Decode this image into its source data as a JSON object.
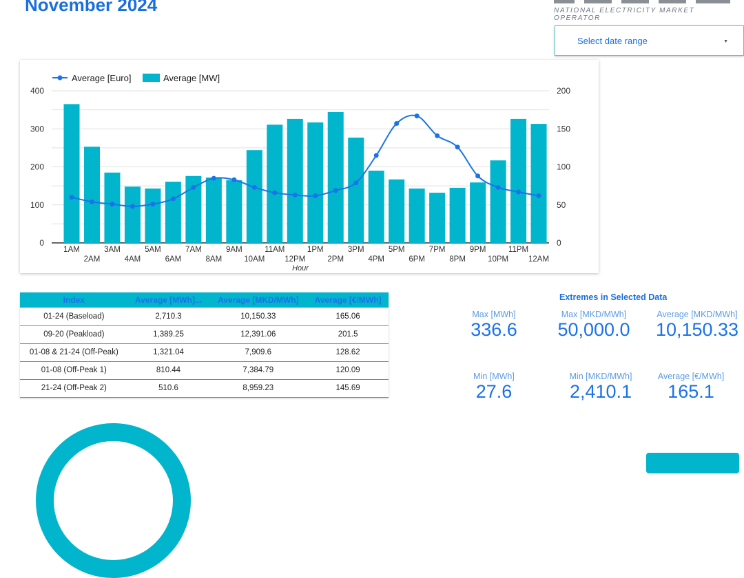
{
  "header": {
    "title": "November 2024",
    "logo_tagline": "NATIONAL ELECTRICITY MARKET OPERATOR"
  },
  "date_range": {
    "label": "Select date range",
    "icon": "caret-down-icon"
  },
  "colors": {
    "bar": "#00b5cc",
    "line": "#1a73e8",
    "title": "#1a6fe0"
  },
  "chart_data": {
    "type": "bar+line",
    "xlabel": "Hour",
    "categories": [
      "1AM",
      "2AM",
      "3AM",
      "4AM",
      "5AM",
      "6AM",
      "7AM",
      "8AM",
      "9AM",
      "10AM",
      "11AM",
      "12PM",
      "1PM",
      "2PM",
      "3PM",
      "4PM",
      "5PM",
      "6PM",
      "7PM",
      "8PM",
      "9PM",
      "10PM",
      "11PM",
      "12AM"
    ],
    "series": [
      {
        "name": "Average [MW]",
        "type": "bar",
        "axis": "left",
        "values": [
          365,
          253,
          185,
          148,
          143,
          161,
          176,
          172,
          165,
          244,
          311,
          326,
          317,
          344,
          277,
          190,
          167,
          143,
          132,
          145,
          159,
          217,
          326,
          313
        ]
      },
      {
        "name": "Average [Euro]",
        "type": "line",
        "axis": "right",
        "values": [
          60,
          54,
          51,
          48,
          51,
          58,
          73,
          85,
          83,
          73,
          66,
          63,
          62,
          69,
          79,
          115,
          157,
          167,
          141,
          126,
          88,
          73,
          67,
          62
        ]
      }
    ],
    "left_axis": {
      "ylim": [
        0,
        400
      ],
      "ticks": [
        "0",
        "100",
        "200",
        "300",
        "400"
      ]
    },
    "right_axis": {
      "ylim": [
        0,
        200
      ],
      "ticks": [
        "0",
        "50",
        "100",
        "150",
        "200"
      ]
    },
    "grid": true,
    "legend": "top-left"
  },
  "table": {
    "headers": [
      "Index",
      "Average [MWh]...",
      "Average [MKD/MWh]",
      "Average [€/MWh]"
    ],
    "rows": [
      [
        "01-24 (Baseload)",
        "2,710.3",
        "10,150.33",
        "165.06"
      ],
      [
        "09-20 (Peakload)",
        "1,389.25",
        "12,391.06",
        "201.5"
      ],
      [
        "01-08 & 21-24 (Off-Peak)",
        "1,321.04",
        "7,909.6",
        "128.62"
      ],
      [
        "01-08 (Off-Peak 1)",
        "810.44",
        "7,384.79",
        "120.09"
      ],
      [
        "21-24 (Off-Peak 2)",
        "510.6",
        "8,959.23",
        "145.69"
      ]
    ]
  },
  "extremes": {
    "title": "Extremes in Selected Data",
    "stats": [
      {
        "label": "Max [MWh]",
        "value": "336.6"
      },
      {
        "label": "Max [MKD/MWh]",
        "value": "50,000.0"
      },
      {
        "label": "Average [MKD/MWh]",
        "value": "10,150.33"
      },
      {
        "label": "Min [MWh]",
        "value": "27.6"
      },
      {
        "label": "Min [MKD/MWh]",
        "value": "2,410.1"
      },
      {
        "label": "Average [€/MWh]",
        "value": "165.1"
      }
    ]
  }
}
